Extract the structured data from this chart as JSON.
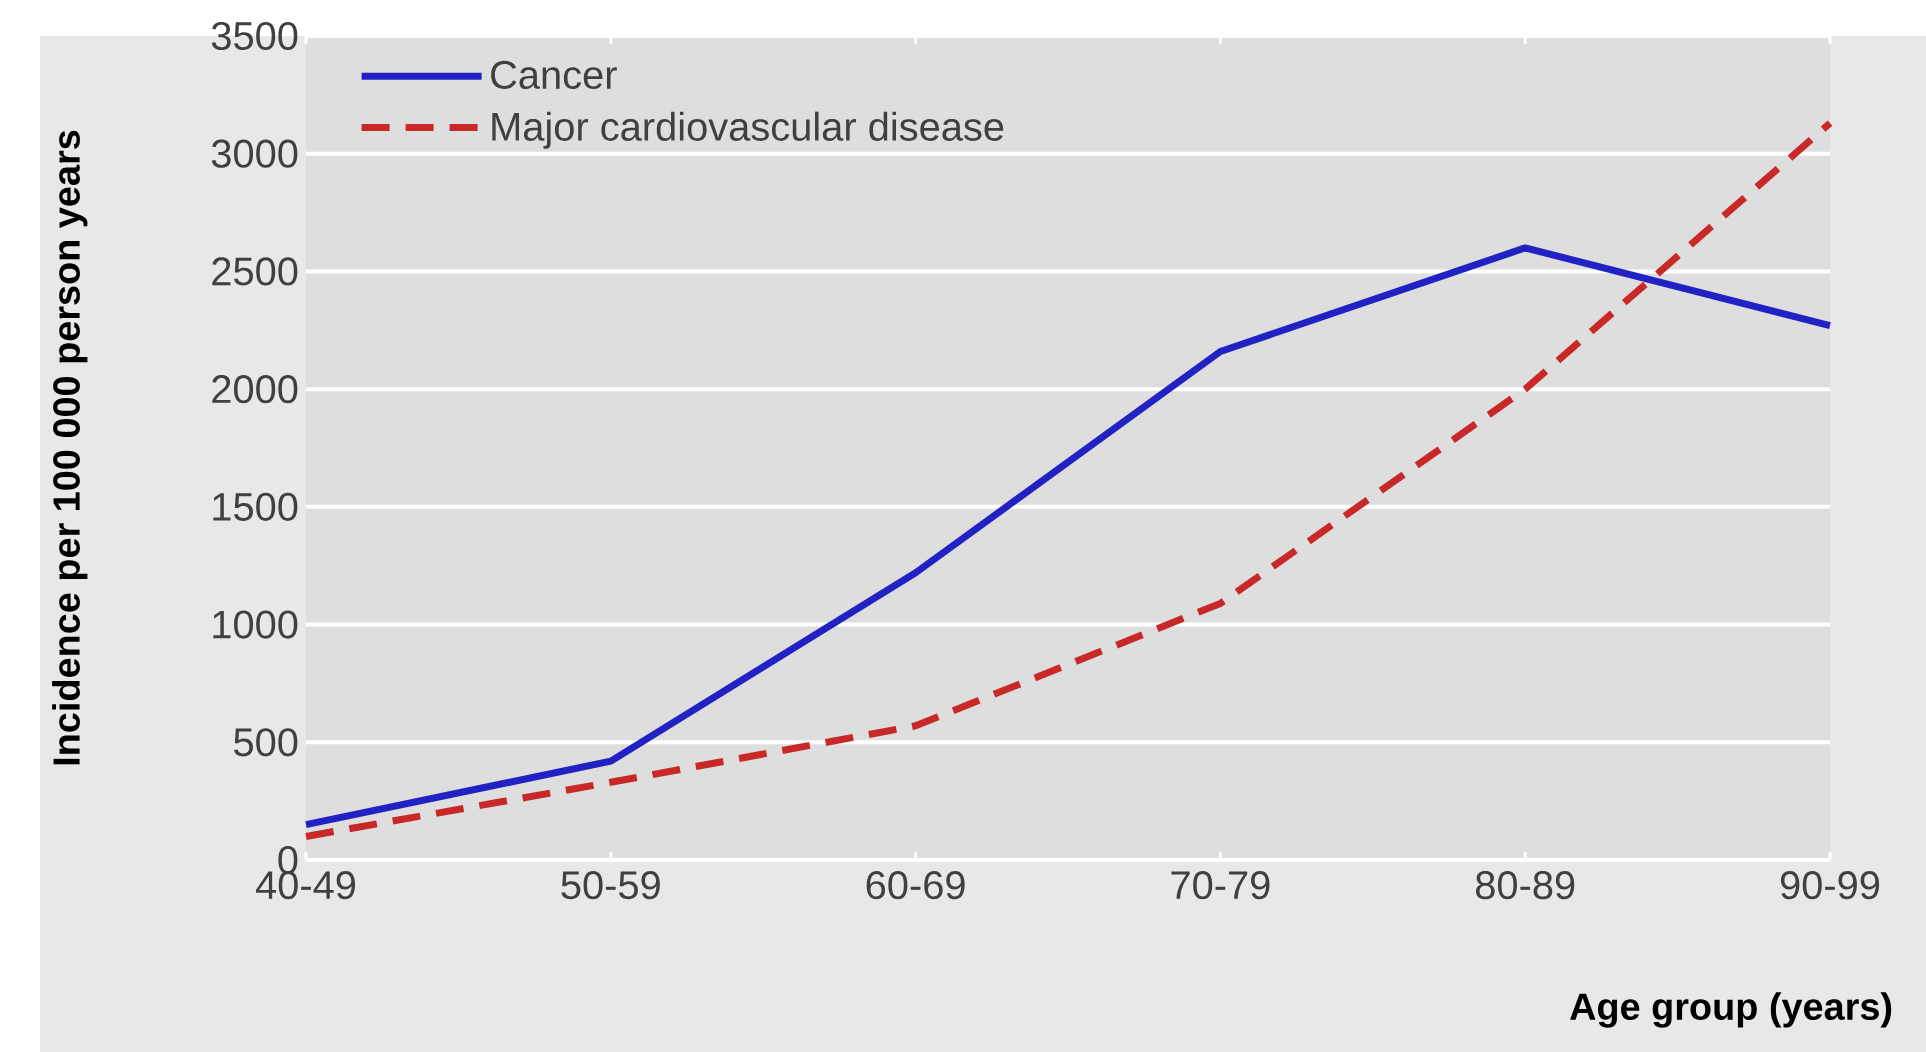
{
  "chart_data": {
    "type": "line",
    "ylabel": "Incidence per 100 000 person years",
    "xlabel": "Age group (years)",
    "categories": [
      "40-49",
      "50-59",
      "60-69",
      "70-79",
      "80-89",
      "90-99"
    ],
    "series": [
      {
        "name": "Cancer",
        "color": "#2222c4",
        "line_style": "solid",
        "values": [
          150,
          420,
          1220,
          2160,
          2600,
          2270
        ]
      },
      {
        "name": "Major cardiovascular disease",
        "color": "#c82828",
        "line_style": "dashed",
        "values": [
          100,
          330,
          570,
          1090,
          2000,
          3130
        ]
      }
    ],
    "ylim": [
      0,
      3500
    ],
    "yticks": [
      0,
      500,
      1000,
      1500,
      2000,
      2500,
      3000,
      3500
    ],
    "grid": "y",
    "legend": "top left",
    "marker": "none"
  }
}
